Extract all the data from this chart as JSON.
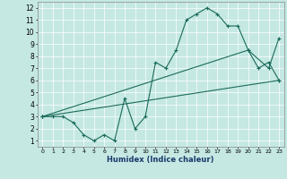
{
  "xlabel": "Humidex (Indice chaleur)",
  "xlim": [
    -0.5,
    23.5
  ],
  "ylim": [
    0.5,
    12.5
  ],
  "xticks": [
    0,
    1,
    2,
    3,
    4,
    5,
    6,
    7,
    8,
    9,
    10,
    11,
    12,
    13,
    14,
    15,
    16,
    17,
    18,
    19,
    20,
    21,
    22,
    23
  ],
  "yticks": [
    1,
    2,
    3,
    4,
    5,
    6,
    7,
    8,
    9,
    10,
    11,
    12
  ],
  "bg_color": "#c5e8e3",
  "line_color": "#1a6b5a",
  "line1_x": [
    0,
    1,
    2,
    3,
    4,
    5,
    6,
    7,
    8,
    9,
    10,
    11,
    12,
    13,
    14,
    15,
    16,
    17,
    18,
    19,
    20,
    21,
    22,
    23
  ],
  "line1_y": [
    3,
    3,
    3,
    2.5,
    1.5,
    1,
    1.5,
    1,
    4.5,
    2,
    3,
    7.5,
    7,
    8.5,
    11,
    11.5,
    12,
    11.5,
    10.5,
    10.5,
    8.5,
    7,
    7.5,
    6
  ],
  "line2_x": [
    0,
    20,
    22,
    23
  ],
  "line2_y": [
    3,
    8.5,
    7,
    9.5
  ],
  "line3_x": [
    0,
    23
  ],
  "line3_y": [
    3,
    6.0
  ]
}
